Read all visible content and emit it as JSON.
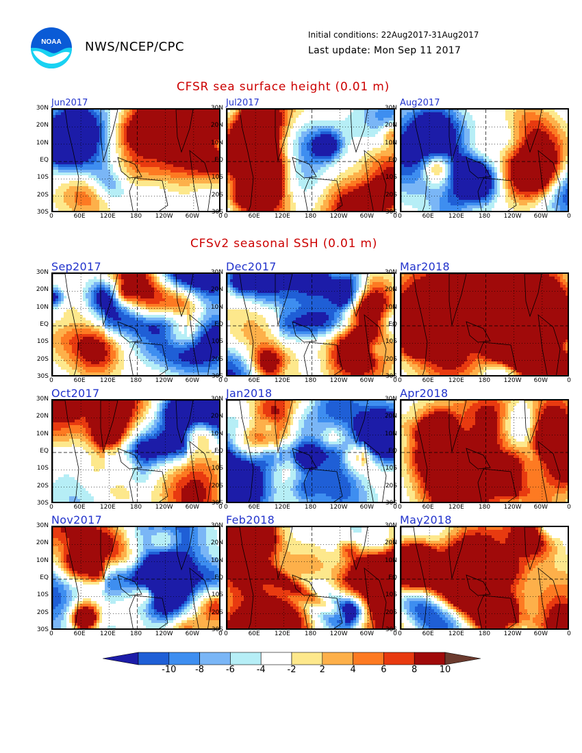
{
  "header": {
    "logo_text": "NOAA",
    "org": "NWS/NCEP/CPC",
    "initial_conditions": "Initial conditions: 22Aug2017-31Aug2017",
    "last_update": "Last update: Mon Sep 11 2017"
  },
  "section1_title": "CFSR sea surface height (0.01 m)",
  "section2_title": "CFSv2 seasonal SSH (0.01 m)",
  "panels": [
    {
      "label": "Jun2017",
      "pattern": "mixed"
    },
    {
      "label": "Jul2017",
      "pattern": "mixed"
    },
    {
      "label": "Aug2017",
      "pattern": "mixed"
    },
    {
      "label": "Sep2017",
      "pattern": "neg"
    },
    {
      "label": "Dec2017",
      "pattern": "neg"
    },
    {
      "label": "Mar2018",
      "pattern": "pos"
    },
    {
      "label": "Oct2017",
      "pattern": "neg"
    },
    {
      "label": "Jan2018",
      "pattern": "neg"
    },
    {
      "label": "Apr2018",
      "pattern": "pos"
    },
    {
      "label": "Nov2017",
      "pattern": "neg"
    },
    {
      "label": "Feb2018",
      "pattern": "pos"
    },
    {
      "label": "May2018",
      "pattern": "pos"
    }
  ],
  "y_ticks": [
    "30N",
    "20N",
    "10N",
    "EQ",
    "10S",
    "20S",
    "30S"
  ],
  "x_ticks": [
    "0",
    "60E",
    "120E",
    "180",
    "120W",
    "60W",
    "0"
  ],
  "colorbar": {
    "labels": [
      "-10",
      "-8",
      "-6",
      "-4",
      "-2",
      "2",
      "4",
      "6",
      "8",
      "10"
    ],
    "colors": [
      "#1c1ca8",
      "#1f5fd6",
      "#3e8ef0",
      "#7ab6f6",
      "#b6eef6",
      "#ffffff",
      "#fde88c",
      "#fdb04a",
      "#fd7a22",
      "#e83a10",
      "#a00a0a",
      "#6b3a2e"
    ]
  }
}
